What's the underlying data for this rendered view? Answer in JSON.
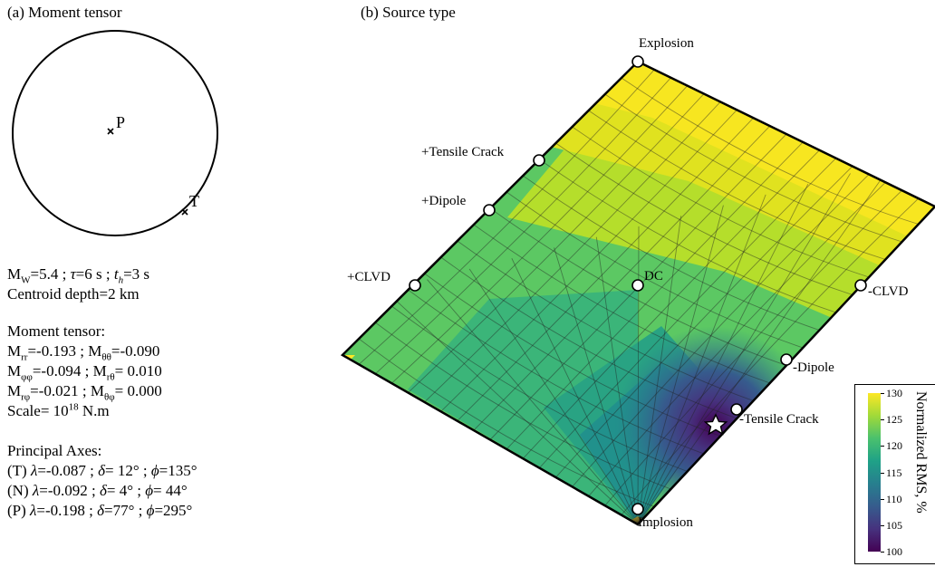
{
  "panel_a": {
    "title": "(a) Moment tensor",
    "p_label": "P",
    "t_label": "T",
    "mw_line": {
      "prefix": "M",
      "sub": "W",
      "rest1": "=5.4 ; ",
      "tau": "τ",
      "rest2": "=6 s ; ",
      "th": "t",
      "th_sub": "h",
      "rest3": "=3 s"
    },
    "depth_line": "Centroid depth=2 km",
    "mt_heading": "Moment tensor:",
    "mt_rows": [
      {
        "a_sub": "rr",
        "a_val": "=-0.193 ; ",
        "b_sub": "θθ",
        "b_val": "=-0.090"
      },
      {
        "a_sub": "φφ",
        "a_val": "=-0.094 ; ",
        "b_sub": "rθ",
        "b_val": "= 0.010"
      },
      {
        "a_sub": "rφ",
        "a_val": "=-0.021 ; ",
        "b_sub": "θφ",
        "b_val": "= 0.000"
      }
    ],
    "scale_line": {
      "prefix": "Scale= 10",
      "sup": "18",
      "rest": " N.m"
    },
    "pa_heading": "Principal Axes:",
    "pa_rows": [
      {
        "axis": "(T) ",
        "lam": "=-0.087 ; ",
        "delta": "= 12° ; ",
        "phi": "=135°"
      },
      {
        "axis": "(N) ",
        "lam": "=-0.092 ; ",
        "delta": "=  4° ; ",
        "phi": "= 44°"
      },
      {
        "axis": "(P) ",
        "lam": "=-0.198 ; ",
        "delta": "=77° ; ",
        "phi": "=295°"
      }
    ]
  },
  "panel_b": {
    "title": "(b) Source type",
    "labels": {
      "explosion": "Explosion",
      "tensile_plus": "+Tensile Crack",
      "dipole_plus": "+Dipole",
      "clvd_plus": "+CLVD",
      "dc": "DC",
      "clvd_minus": "-CLVD",
      "dipole_minus": "-Dipole",
      "tensile_minus": "-Tensile Crack",
      "implosion": "Implosion"
    },
    "colorbar": {
      "label": "Normalized RMS, %",
      "ticks": [
        "130",
        "125",
        "120",
        "115",
        "110",
        "105",
        "100"
      ],
      "colors": [
        "#fde725",
        "#a0da39",
        "#4ac16d",
        "#1fa187",
        "#277f8e",
        "#365c8d",
        "#46327e",
        "#440154"
      ]
    }
  }
}
